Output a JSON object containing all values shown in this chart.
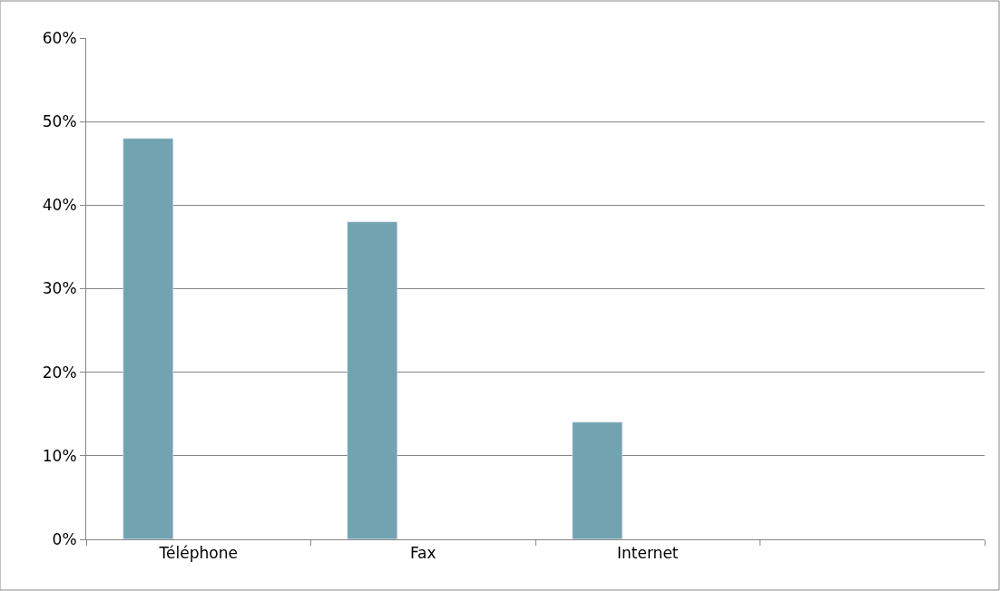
{
  "chart_data": {
    "type": "bar",
    "categories": [
      "Téléphone",
      "Fax",
      "Internet",
      null
    ],
    "values": [
      48,
      38,
      14,
      null
    ],
    "color": "#71a3b1",
    "ylim": [
      0,
      60
    ],
    "yticks": [
      {
        "value": 0,
        "label": "0%"
      },
      {
        "value": 10,
        "label": "10%"
      },
      {
        "value": 20,
        "label": "20%"
      },
      {
        "value": 30,
        "label": "30%"
      },
      {
        "value": 40,
        "label": "40%"
      },
      {
        "value": 50,
        "label": "50%"
      },
      {
        "value": 60,
        "label": "60%"
      }
    ],
    "grid": "y",
    "legend": false
  }
}
